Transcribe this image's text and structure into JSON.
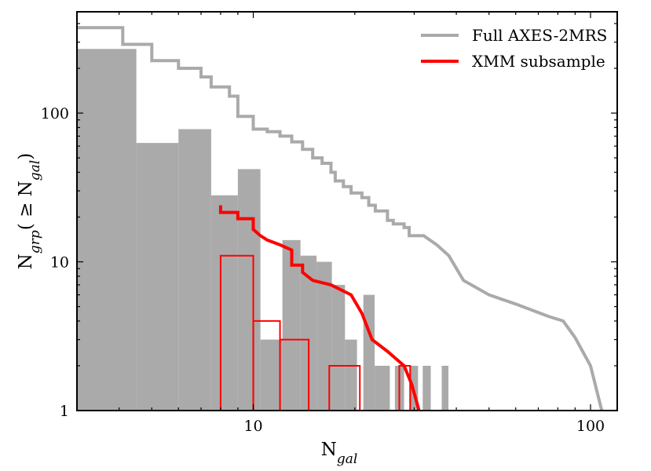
{
  "chart_data": {
    "type": "bar",
    "xscale": "log",
    "yscale": "log",
    "xlim": [
      3.0,
      120
    ],
    "ylim": [
      1,
      480
    ],
    "xlabel": {
      "main": "N",
      "sub": "gal"
    },
    "ylabel": {
      "main": "N",
      "sub": "grp",
      "rest": "( ≥ N",
      "sub2": "gal",
      "end": ")"
    },
    "xticks": [
      {
        "value": 10,
        "label": "10"
      },
      {
        "value": 100,
        "label": "100"
      }
    ],
    "yticks": [
      {
        "value": 1,
        "label": "1"
      },
      {
        "value": 10,
        "label": "10"
      },
      {
        "value": 100,
        "label": "100"
      }
    ],
    "grid": false,
    "legend": {
      "position": "top-right",
      "entries": [
        {
          "label": "Full AXES-2MRS",
          "color": "#aaaaaa"
        },
        {
          "label": "XMM subsample",
          "color": "#ff0000"
        }
      ]
    },
    "histograms": [
      {
        "name": "Full AXES-2MRS",
        "style": "filled",
        "color": "#aaaaaa",
        "bins": [
          {
            "x0": 3.0,
            "x1": 4.5,
            "count": 270
          },
          {
            "x0": 4.5,
            "x1": 6.0,
            "count": 63
          },
          {
            "x0": 6.0,
            "x1": 7.5,
            "count": 78
          },
          {
            "x0": 7.5,
            "x1": 9.0,
            "count": 28
          },
          {
            "x0": 9.0,
            "x1": 10.5,
            "count": 42
          },
          {
            "x0": 10.5,
            "x1": 12.2,
            "count": 3
          },
          {
            "x0": 12.2,
            "x1": 13.8,
            "count": 14
          },
          {
            "x0": 13.8,
            "x1": 15.4,
            "count": 11
          },
          {
            "x0": 15.4,
            "x1": 17.1,
            "count": 10
          },
          {
            "x0": 17.1,
            "x1": 18.7,
            "count": 7
          },
          {
            "x0": 18.7,
            "x1": 20.3,
            "count": 3
          },
          {
            "x0": 21.2,
            "x1": 22.9,
            "count": 6
          },
          {
            "x0": 22.9,
            "x1": 25.4,
            "count": 2
          },
          {
            "x0": 26.3,
            "x1": 28.0,
            "count": 2
          },
          {
            "x0": 29.0,
            "x1": 30.8,
            "count": 2
          },
          {
            "x0": 31.8,
            "x1": 33.6,
            "count": 2
          },
          {
            "x0": 36.2,
            "x1": 37.9,
            "count": 2
          }
        ]
      },
      {
        "name": "XMM subsample",
        "style": "step",
        "color": "#ff0000",
        "bins": [
          {
            "x0": 8.0,
            "x1": 10.0,
            "count": 11
          },
          {
            "x0": 10.0,
            "x1": 12.0,
            "count": 4
          },
          {
            "x0": 12.0,
            "x1": 14.6,
            "count": 3
          },
          {
            "x0": 16.8,
            "x1": 20.7,
            "count": 2
          },
          {
            "x0": 27.1,
            "x1": 29.2,
            "count": 2
          }
        ]
      }
    ],
    "series": [
      {
        "name": "Full AXES-2MRS",
        "type": "line",
        "color": "#aaaaaa",
        "points": [
          [
            3.0,
            375
          ],
          [
            4.1,
            375
          ],
          [
            4.1,
            290
          ],
          [
            5.0,
            290
          ],
          [
            5.0,
            225
          ],
          [
            6.0,
            225
          ],
          [
            6.0,
            200
          ],
          [
            7.0,
            200
          ],
          [
            7.0,
            175
          ],
          [
            7.5,
            175
          ],
          [
            7.5,
            150
          ],
          [
            8.5,
            150
          ],
          [
            8.5,
            130
          ],
          [
            9.0,
            130
          ],
          [
            9.0,
            95
          ],
          [
            10.0,
            95
          ],
          [
            10.0,
            78
          ],
          [
            11.0,
            78
          ],
          [
            11.0,
            75
          ],
          [
            12.0,
            75
          ],
          [
            12.0,
            70
          ],
          [
            13.0,
            70
          ],
          [
            13.0,
            64
          ],
          [
            14.0,
            64
          ],
          [
            14.0,
            57
          ],
          [
            15.0,
            57
          ],
          [
            15.0,
            50
          ],
          [
            16.0,
            50
          ],
          [
            16.0,
            46
          ],
          [
            17.0,
            46
          ],
          [
            17.0,
            40
          ],
          [
            17.5,
            40
          ],
          [
            17.5,
            35
          ],
          [
            18.5,
            35
          ],
          [
            18.5,
            32
          ],
          [
            19.5,
            32
          ],
          [
            19.5,
            29
          ],
          [
            21.0,
            29
          ],
          [
            21.0,
            27
          ],
          [
            22.0,
            27
          ],
          [
            22.0,
            24
          ],
          [
            23.0,
            24
          ],
          [
            23.0,
            22
          ],
          [
            25.0,
            22
          ],
          [
            25.0,
            19
          ],
          [
            26.0,
            19
          ],
          [
            26.0,
            18
          ],
          [
            28.0,
            18
          ],
          [
            28.0,
            17
          ],
          [
            29.0,
            17
          ],
          [
            29.0,
            15
          ],
          [
            32.0,
            15
          ],
          [
            35.0,
            13
          ],
          [
            38.0,
            11
          ],
          [
            42.0,
            7.5
          ],
          [
            50.0,
            6.0
          ],
          [
            60.0,
            5.2
          ],
          [
            75.0,
            4.3
          ],
          [
            83.0,
            4.0
          ],
          [
            90.0,
            3.1
          ],
          [
            100.0,
            2.0
          ],
          [
            108.0,
            1.0
          ]
        ]
      },
      {
        "name": "XMM subsample",
        "type": "line",
        "color": "#ff0000",
        "points": [
          [
            8.0,
            24
          ],
          [
            8.0,
            21.5
          ],
          [
            9.0,
            21.5
          ],
          [
            9.0,
            19.5
          ],
          [
            10.0,
            19.5
          ],
          [
            10.0,
            16.5
          ],
          [
            10.5,
            15
          ],
          [
            11.0,
            14
          ],
          [
            12.0,
            13
          ],
          [
            13.0,
            12
          ],
          [
            13.0,
            9.5
          ],
          [
            14.0,
            9.5
          ],
          [
            14.0,
            8.5
          ],
          [
            15.0,
            7.5
          ],
          [
            17.0,
            7.0
          ],
          [
            19.5,
            6.0
          ],
          [
            21.0,
            4.5
          ],
          [
            22.5,
            3.0
          ],
          [
            25.0,
            2.5
          ],
          [
            28.0,
            2.0
          ],
          [
            29.5,
            1.5
          ],
          [
            31.0,
            1.0
          ]
        ]
      }
    ]
  }
}
